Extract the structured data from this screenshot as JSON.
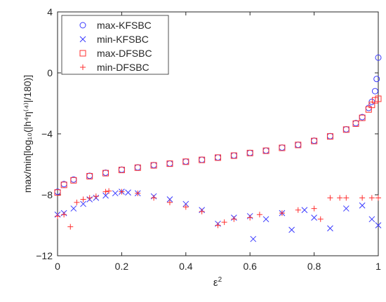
{
  "chart_data": {
    "type": "scatter",
    "title": "",
    "xlabel_base": "ε",
    "xlabel_sup": "2",
    "ylabel": "max/min[log₁₀(|h⁴η⁽⁴⁾|/180)]",
    "xlim": [
      0,
      1
    ],
    "ylim": [
      -12,
      4
    ],
    "xticks": [
      0,
      0.2,
      0.4,
      0.6,
      0.8,
      1
    ],
    "xtick_labels": [
      "0",
      "0.2",
      "0.4",
      "0.6",
      "0.8",
      "1"
    ],
    "yticks": [
      -12,
      -8,
      -4,
      0,
      4
    ],
    "ytick_labels": [
      "−12",
      "−8",
      "−4",
      "0",
      "4"
    ],
    "grid": false,
    "legend_position": "top-left",
    "series": [
      {
        "name": "max-KFSBC",
        "marker": "circle",
        "color": "#3a3aff",
        "points": [
          [
            0.0,
            -7.8
          ],
          [
            0.02,
            -7.3
          ],
          [
            0.05,
            -7.0
          ],
          [
            0.1,
            -6.75
          ],
          [
            0.15,
            -6.55
          ],
          [
            0.2,
            -6.35
          ],
          [
            0.25,
            -6.2
          ],
          [
            0.3,
            -6.05
          ],
          [
            0.35,
            -5.95
          ],
          [
            0.4,
            -5.82
          ],
          [
            0.45,
            -5.7
          ],
          [
            0.5,
            -5.55
          ],
          [
            0.55,
            -5.42
          ],
          [
            0.6,
            -5.25
          ],
          [
            0.65,
            -5.1
          ],
          [
            0.7,
            -4.9
          ],
          [
            0.75,
            -4.72
          ],
          [
            0.8,
            -4.45
          ],
          [
            0.85,
            -4.15
          ],
          [
            0.9,
            -3.7
          ],
          [
            0.93,
            -3.3
          ],
          [
            0.95,
            -2.9
          ],
          [
            0.97,
            -2.3
          ],
          [
            0.98,
            -1.9
          ],
          [
            0.99,
            -1.2
          ],
          [
            0.995,
            -0.4
          ],
          [
            1.0,
            1.0
          ]
        ]
      },
      {
        "name": "min-KFSBC",
        "marker": "x",
        "color": "#3a3aff",
        "points": [
          [
            0.0,
            -9.3
          ],
          [
            0.02,
            -9.2
          ],
          [
            0.05,
            -8.9
          ],
          [
            0.08,
            -8.6
          ],
          [
            0.1,
            -8.3
          ],
          [
            0.12,
            -8.2
          ],
          [
            0.15,
            -8.05
          ],
          [
            0.18,
            -7.9
          ],
          [
            0.2,
            -7.8
          ],
          [
            0.22,
            -7.85
          ],
          [
            0.25,
            -7.9
          ],
          [
            0.3,
            -8.1
          ],
          [
            0.35,
            -8.3
          ],
          [
            0.4,
            -8.6
          ],
          [
            0.45,
            -9.0
          ],
          [
            0.5,
            -9.9
          ],
          [
            0.55,
            -9.5
          ],
          [
            0.6,
            -9.4
          ],
          [
            0.61,
            -10.9
          ],
          [
            0.65,
            -9.6
          ],
          [
            0.7,
            -9.2
          ],
          [
            0.73,
            -10.3
          ],
          [
            0.77,
            -9.0
          ],
          [
            0.8,
            -9.5
          ],
          [
            0.85,
            -10.2
          ],
          [
            0.9,
            -8.9
          ],
          [
            0.95,
            -8.7
          ],
          [
            0.98,
            -9.6
          ],
          [
            1.0,
            -10.0
          ]
        ]
      },
      {
        "name": "max-DFSBC",
        "marker": "square",
        "color": "#ff3030",
        "points": [
          [
            0.0,
            -7.85
          ],
          [
            0.02,
            -7.35
          ],
          [
            0.05,
            -7.05
          ],
          [
            0.1,
            -6.78
          ],
          [
            0.15,
            -6.58
          ],
          [
            0.2,
            -6.37
          ],
          [
            0.25,
            -6.22
          ],
          [
            0.3,
            -6.07
          ],
          [
            0.35,
            -5.96
          ],
          [
            0.4,
            -5.83
          ],
          [
            0.45,
            -5.71
          ],
          [
            0.5,
            -5.56
          ],
          [
            0.55,
            -5.43
          ],
          [
            0.6,
            -5.26
          ],
          [
            0.65,
            -5.11
          ],
          [
            0.7,
            -4.92
          ],
          [
            0.75,
            -4.73
          ],
          [
            0.8,
            -4.47
          ],
          [
            0.85,
            -4.17
          ],
          [
            0.9,
            -3.72
          ],
          [
            0.93,
            -3.33
          ],
          [
            0.95,
            -2.95
          ],
          [
            0.97,
            -2.4
          ],
          [
            0.98,
            -2.1
          ],
          [
            0.99,
            -1.8
          ],
          [
            1.0,
            -1.7
          ]
        ]
      },
      {
        "name": "min-DFSBC",
        "marker": "plus",
        "color": "#ff3030",
        "points": [
          [
            0.0,
            -9.4
          ],
          [
            0.02,
            -9.3
          ],
          [
            0.04,
            -10.1
          ],
          [
            0.06,
            -8.5
          ],
          [
            0.08,
            -8.3
          ],
          [
            0.1,
            -8.2
          ],
          [
            0.12,
            -8.1
          ],
          [
            0.15,
            -7.8
          ],
          [
            0.16,
            -7.75
          ],
          [
            0.2,
            -7.8
          ],
          [
            0.25,
            -7.9
          ],
          [
            0.3,
            -8.2
          ],
          [
            0.35,
            -8.5
          ],
          [
            0.4,
            -8.8
          ],
          [
            0.45,
            -9.1
          ],
          [
            0.5,
            -10.0
          ],
          [
            0.52,
            -9.8
          ],
          [
            0.55,
            -9.6
          ],
          [
            0.6,
            -9.5
          ],
          [
            0.63,
            -9.3
          ],
          [
            0.7,
            -9.2
          ],
          [
            0.75,
            -9.0
          ],
          [
            0.8,
            -8.9
          ],
          [
            0.82,
            -9.6
          ],
          [
            0.85,
            -8.2
          ],
          [
            0.88,
            -8.2
          ],
          [
            0.9,
            -8.2
          ],
          [
            0.95,
            -8.2
          ],
          [
            0.98,
            -8.2
          ],
          [
            1.0,
            -8.2
          ]
        ]
      }
    ]
  }
}
